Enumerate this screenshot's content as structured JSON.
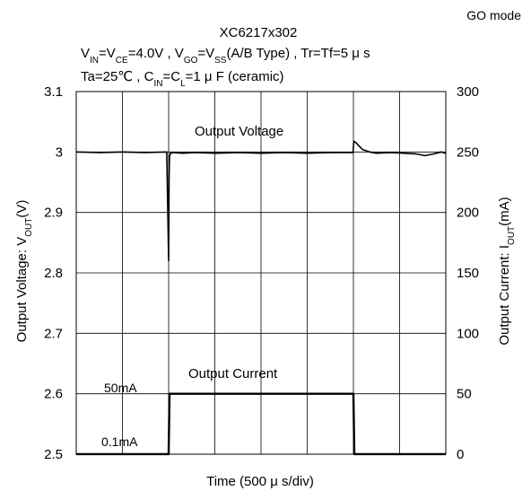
{
  "chart_data": {
    "type": "line",
    "mode_label": "GO mode",
    "title": {
      "line1": "XC6217x302",
      "line2": [
        {
          "t": "V"
        },
        {
          "t": "IN",
          "sub": true
        },
        {
          "t": "=V"
        },
        {
          "t": "CE",
          "sub": true
        },
        {
          "t": "=4.0V , V"
        },
        {
          "t": "GO",
          "sub": true
        },
        {
          "t": "=V"
        },
        {
          "t": "SS",
          "sub": true
        },
        {
          "t": "(A/B Type) , Tr=Tf=5 μ s"
        }
      ],
      "line3": [
        {
          "t": "Ta=25℃ , C"
        },
        {
          "t": "IN",
          "sub": true
        },
        {
          "t": "=C"
        },
        {
          "t": "L",
          "sub": true
        },
        {
          "t": "=1 μ F (ceramic)"
        }
      ]
    },
    "xlabel": "Time (500 μ s/div)",
    "x_divisions": 8,
    "left_axis": {
      "label": [
        {
          "t": "Output Voltage: V"
        },
        {
          "t": "OUT",
          "sub": true
        },
        {
          "t": "(V)"
        }
      ],
      "min": 2.5,
      "max": 3.1,
      "ticks": [
        "2.5",
        "2.6",
        "2.7",
        "2.8",
        "2.9",
        "3",
        "3.1"
      ]
    },
    "right_axis": {
      "label": [
        {
          "t": "Output Current: I"
        },
        {
          "t": "OUT",
          "sub": true
        },
        {
          "t": "(mA)"
        }
      ],
      "min": 0,
      "max": 300,
      "ticks": [
        "0",
        "50",
        "100",
        "150",
        "200",
        "250",
        "300"
      ]
    },
    "annotations": {
      "output_voltage": "Output Voltage",
      "output_current": "Output Current",
      "high_level": "50mA",
      "low_level": "0.1mA"
    },
    "series": [
      {
        "name": "Output Voltage",
        "axis": "left",
        "x_div": [
          0,
          0.5,
          1,
          1.5,
          1.96,
          2.0,
          2.01,
          2.02,
          2.04,
          2.1,
          2.3,
          2.6,
          3,
          3.5,
          4,
          4.5,
          5,
          5.5,
          5.9,
          5.99,
          6.01,
          6.06,
          6.12,
          6.2,
          6.35,
          6.5,
          6.8,
          7.1,
          7.35,
          7.55,
          7.75,
          7.9,
          8
        ],
        "values": [
          3.0,
          2.999,
          3.0,
          2.999,
          3.0,
          2.82,
          2.96,
          2.993,
          2.998,
          2.999,
          2.998,
          2.999,
          2.998,
          2.999,
          2.998,
          2.999,
          2.998,
          2.999,
          2.999,
          2.999,
          3.018,
          3.015,
          3.01,
          3.004,
          3.0,
          2.998,
          2.999,
          2.998,
          2.997,
          2.994,
          2.997,
          3.0,
          2.998
        ]
      },
      {
        "name": "Output Current",
        "axis": "right",
        "x_div": [
          0,
          2.0,
          2.02,
          6.0,
          6.02,
          8
        ],
        "values": [
          0.1,
          0.1,
          50,
          50,
          0.1,
          0.1
        ]
      }
    ],
    "grid": true
  }
}
